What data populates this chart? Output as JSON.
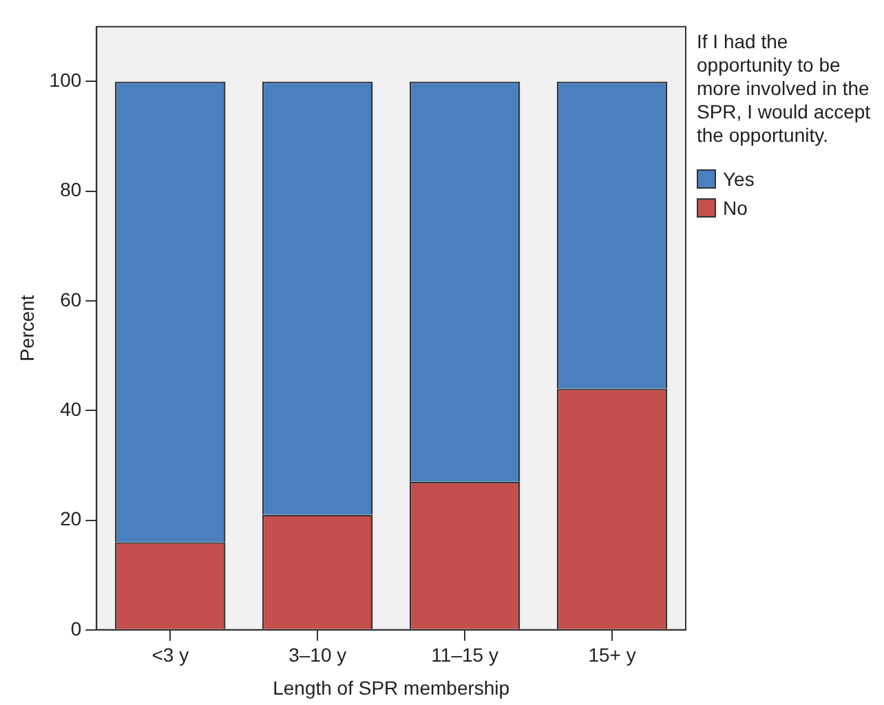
{
  "chart_data": {
    "type": "bar",
    "stacked": true,
    "xlabel": "Length of SPR membership",
    "ylabel": "Percent",
    "legend_title": "If I had the opportunity to be more involved in the SPR, I would accept the opportunity.",
    "legend": "top right",
    "categories": [
      "<3 y",
      "3–10 y",
      "11–15 y",
      "15+ y"
    ],
    "series": [
      {
        "name": "No",
        "color": "#c44f4d",
        "values": [
          16,
          21,
          27,
          44
        ]
      },
      {
        "name": "Yes",
        "color": "#4a80c0",
        "values": [
          84,
          79,
          73,
          56
        ]
      }
    ],
    "ylim": [
      0,
      110
    ],
    "yticks": [
      0,
      20,
      40,
      60,
      80,
      100
    ],
    "grid": false
  }
}
